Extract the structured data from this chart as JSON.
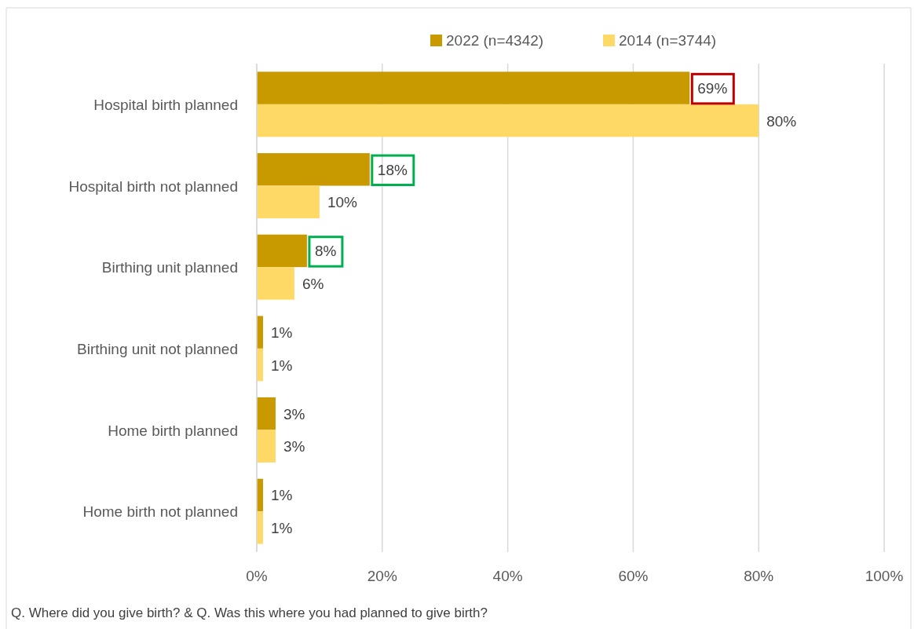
{
  "chart_data": {
    "type": "bar",
    "orientation": "horizontal",
    "categories": [
      "Hospital birth planned",
      "Hospital birth not planned",
      "Birthing unit planned",
      "Birthing unit not planned",
      "Home birth planned",
      "Home birth not planned"
    ],
    "series": [
      {
        "name": "2022 (n=4342)",
        "color": "#c99a00",
        "values": [
          69,
          18,
          8,
          1,
          3,
          1
        ],
        "value_labels": [
          "69%",
          "18%",
          "8%",
          "1%",
          "3%",
          "1%"
        ]
      },
      {
        "name": "2014 (n=3744)",
        "color": "#ffd966",
        "values": [
          80,
          10,
          6,
          1,
          3,
          1
        ],
        "value_labels": [
          "80%",
          "10%",
          "6%",
          "1%",
          "3%",
          "1%"
        ]
      }
    ],
    "xlim": [
      0,
      100
    ],
    "xticks": [
      {
        "value": 0,
        "label": "0%"
      },
      {
        "value": 20,
        "label": "20%"
      },
      {
        "value": 40,
        "label": "40%"
      },
      {
        "value": 60,
        "label": "60%"
      },
      {
        "value": 80,
        "label": "80%"
      },
      {
        "value": 100,
        "label": "100%"
      }
    ],
    "grid": "x",
    "legend": "top",
    "annotations": [
      "Q. Where did you give birth? & Q. Was this where you had planned to give birth?"
    ]
  }
}
